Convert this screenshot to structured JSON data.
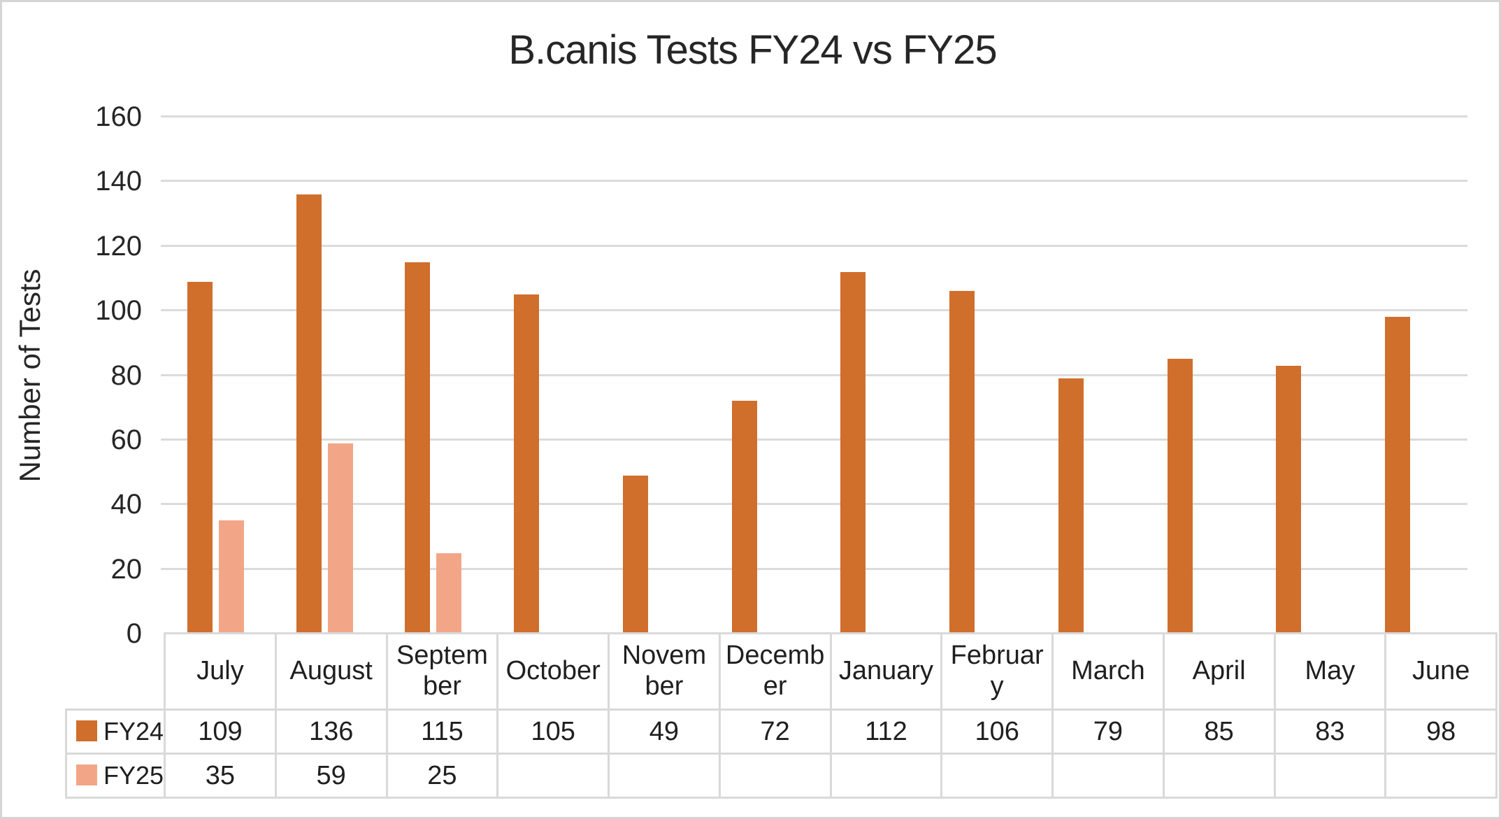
{
  "chart_data": {
    "type": "bar",
    "title": "B.canis Tests FY24 vs FY25",
    "xlabel": "",
    "ylabel": "Number of Tests",
    "ylim": [
      0,
      160
    ],
    "yticks": [
      0,
      20,
      40,
      60,
      80,
      100,
      120,
      140,
      160
    ],
    "grid": true,
    "legend_position": "data-table-left",
    "categories": [
      "July",
      "August",
      "September",
      "October",
      "November",
      "December",
      "January",
      "February",
      "March",
      "April",
      "May",
      "June"
    ],
    "category_display_labels": [
      "July",
      "August",
      "Septem\nber",
      "October",
      "Novem\nber",
      "Decemb\ner",
      "January",
      "Februar\ny",
      "March",
      "April",
      "May",
      "June"
    ],
    "series": [
      {
        "name": "FY24",
        "color": "#d06e2c",
        "values": [
          109,
          136,
          115,
          105,
          49,
          72,
          112,
          106,
          79,
          85,
          83,
          98
        ]
      },
      {
        "name": "FY25",
        "color": "#f2a687",
        "values": [
          35,
          59,
          25,
          null,
          null,
          null,
          null,
          null,
          null,
          null,
          null,
          null
        ]
      }
    ]
  },
  "colors": {
    "gridline": "#dbdbdb",
    "table_border": "#d9d9d9",
    "frame_border": "#d5d5d5",
    "text": "#262626",
    "background": "#ffffff"
  }
}
